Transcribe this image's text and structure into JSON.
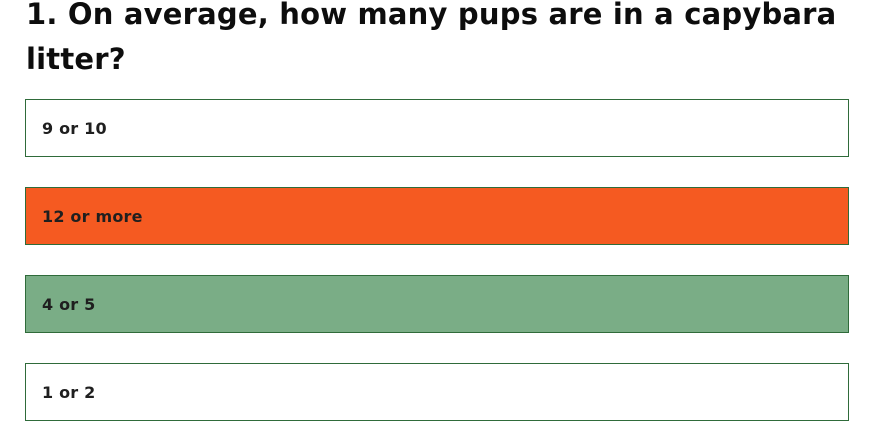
{
  "question": {
    "text": "1. On average, how many pups are in a capybara litter?"
  },
  "options": [
    {
      "label": "9 or 10",
      "state": "unselected",
      "color": "#ffffff"
    },
    {
      "label": "12 or more",
      "state": "incorrect",
      "color": "#f55a21"
    },
    {
      "label": "4 or 5",
      "state": "correct",
      "color": "#7aad86"
    },
    {
      "label": "1 or 2",
      "state": "unselected",
      "color": "#ffffff"
    }
  ],
  "colors": {
    "border": "#2f6b3a",
    "text": "#111111"
  }
}
